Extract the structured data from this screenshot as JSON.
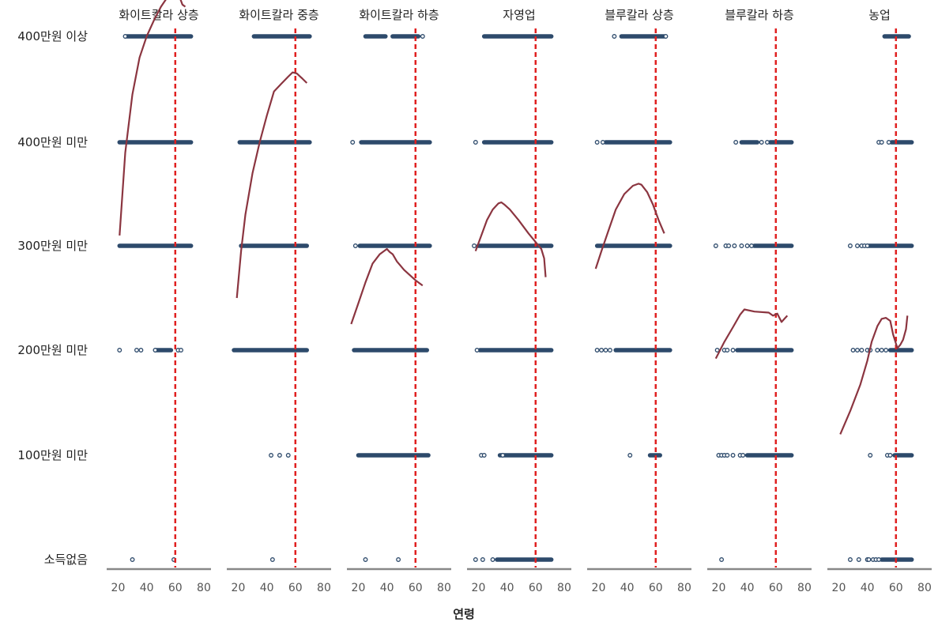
{
  "chart_data": {
    "type": "scatter",
    "xlabel": "연령",
    "xlim": [
      12,
      85
    ],
    "x_ticks": [
      20,
      40,
      60,
      80
    ],
    "y_levels": [
      "소득없음",
      "100만원 미만",
      "200만원 미만",
      "300만원 미만",
      "400만원 미만",
      "400만원 이상"
    ],
    "reference_line": 60,
    "colors": {
      "points": "#2d4a6b",
      "curve": "#8b3540",
      "ref": "#e02020",
      "axis": "#888888"
    },
    "facets": [
      {
        "title": "화이트칼라 상층",
        "points": [
          {
            "level": 5,
            "segments": [
              [
                26,
                71
              ]
            ],
            "singles": [
              25
            ]
          },
          {
            "level": 4,
            "segments": [
              [
                21,
                71
              ]
            ],
            "singles": []
          },
          {
            "level": 3,
            "segments": [
              [
                21,
                71
              ]
            ],
            "singles": []
          },
          {
            "level": 2,
            "segments": [
              [
                46,
                57
              ]
            ],
            "singles": [
              21,
              33,
              36,
              46,
              62,
              64
            ]
          },
          {
            "level": 1,
            "segments": [],
            "singles": []
          },
          {
            "level": 0,
            "segments": [],
            "singles": [
              30,
              59
            ]
          }
        ],
        "curve": [
          [
            21,
            3.1
          ],
          [
            25,
            3.9
          ],
          [
            30,
            4.45
          ],
          [
            35,
            4.8
          ],
          [
            40,
            5.0
          ],
          [
            45,
            5.15
          ],
          [
            50,
            5.28
          ],
          [
            55,
            5.38
          ],
          [
            60,
            5.42
          ],
          [
            62,
            5.41
          ],
          [
            65,
            5.3
          ],
          [
            67,
            5.28
          ]
        ]
      },
      {
        "title": "화이트칼라 중층",
        "points": [
          {
            "level": 5,
            "segments": [
              [
                31,
                70
              ]
            ],
            "singles": []
          },
          {
            "level": 4,
            "segments": [
              [
                21,
                70
              ]
            ],
            "singles": []
          },
          {
            "level": 3,
            "segments": [
              [
                22,
                68
              ]
            ],
            "singles": []
          },
          {
            "level": 2,
            "segments": [
              [
                17,
                68
              ]
            ],
            "singles": []
          },
          {
            "level": 1,
            "segments": [],
            "singles": [
              43,
              49,
              55
            ]
          },
          {
            "level": 0,
            "segments": [],
            "singles": [
              44
            ]
          }
        ],
        "curve": [
          [
            19,
            2.5
          ],
          [
            22,
            2.95
          ],
          [
            25,
            3.3
          ],
          [
            30,
            3.7
          ],
          [
            35,
            4.0
          ],
          [
            40,
            4.25
          ],
          [
            45,
            4.48
          ],
          [
            50,
            4.55
          ],
          [
            55,
            4.62
          ],
          [
            58,
            4.66
          ],
          [
            61,
            4.65
          ],
          [
            65,
            4.6
          ],
          [
            68,
            4.56
          ]
        ]
      },
      {
        "title": "화이트칼라 하층",
        "points": [
          {
            "level": 5,
            "segments": [
              [
                25,
                39
              ],
              [
                44,
                62
              ]
            ],
            "singles": [
              65
            ]
          },
          {
            "level": 4,
            "segments": [
              [
                22,
                70
              ]
            ],
            "singles": [
              16
            ]
          },
          {
            "level": 3,
            "segments": [
              [
                21,
                70
              ]
            ],
            "singles": [
              18
            ]
          },
          {
            "level": 2,
            "segments": [
              [
                17,
                68
              ]
            ],
            "singles": []
          },
          {
            "level": 1,
            "segments": [
              [
                20,
                69
              ]
            ],
            "singles": []
          },
          {
            "level": 0,
            "segments": [],
            "singles": [
              25,
              48
            ]
          }
        ],
        "curve": [
          [
            15,
            2.25
          ],
          [
            20,
            2.45
          ],
          [
            25,
            2.65
          ],
          [
            30,
            2.83
          ],
          [
            35,
            2.92
          ],
          [
            38,
            2.95
          ],
          [
            40,
            2.97
          ],
          [
            42,
            2.94
          ],
          [
            44,
            2.92
          ],
          [
            47,
            2.85
          ],
          [
            52,
            2.77
          ],
          [
            60,
            2.67
          ],
          [
            65,
            2.62
          ]
        ]
      },
      {
        "title": "자영업",
        "points": [
          {
            "level": 5,
            "segments": [
              [
                24,
                71
              ]
            ],
            "singles": []
          },
          {
            "level": 4,
            "segments": [
              [
                24,
                71
              ]
            ],
            "singles": [
              18
            ]
          },
          {
            "level": 3,
            "segments": [
              [
                20,
                71
              ]
            ],
            "singles": [
              17
            ]
          },
          {
            "level": 2,
            "segments": [
              [
                21,
                71
              ]
            ],
            "singles": [
              19
            ]
          },
          {
            "level": 1,
            "segments": [
              [
                35,
                71
              ]
            ],
            "singles": [
              22,
              24,
              37
            ]
          },
          {
            "level": 0,
            "segments": [
              [
                33,
                71
              ]
            ],
            "singles": [
              18,
              23,
              30
            ]
          }
        ],
        "curve": [
          [
            18,
            2.95
          ],
          [
            22,
            3.1
          ],
          [
            26,
            3.25
          ],
          [
            30,
            3.35
          ],
          [
            34,
            3.41
          ],
          [
            36,
            3.42
          ],
          [
            38,
            3.4
          ],
          [
            42,
            3.35
          ],
          [
            48,
            3.25
          ],
          [
            55,
            3.12
          ],
          [
            61,
            3.02
          ],
          [
            64,
            2.97
          ],
          [
            66,
            2.88
          ],
          [
            67,
            2.7
          ]
        ]
      },
      {
        "title": "블루칼라 상층",
        "points": [
          {
            "level": 5,
            "segments": [
              [
                36,
                66
              ]
            ],
            "singles": [
              31,
              67
            ]
          },
          {
            "level": 4,
            "segments": [
              [
                25,
                70
              ]
            ],
            "singles": [
              19,
              23
            ]
          },
          {
            "level": 3,
            "segments": [
              [
                19,
                70
              ]
            ],
            "singles": []
          },
          {
            "level": 2,
            "segments": [
              [
                32,
                70
              ]
            ],
            "singles": [
              19,
              22,
              25,
              28
            ]
          },
          {
            "level": 1,
            "segments": [
              [
                56,
                63
              ]
            ],
            "singles": [
              42
            ]
          },
          {
            "level": 0,
            "segments": [],
            "singles": []
          }
        ],
        "curve": [
          [
            18,
            2.78
          ],
          [
            22,
            2.95
          ],
          [
            27,
            3.15
          ],
          [
            32,
            3.35
          ],
          [
            38,
            3.5
          ],
          [
            44,
            3.58
          ],
          [
            48,
            3.6
          ],
          [
            50,
            3.59
          ],
          [
            54,
            3.52
          ],
          [
            58,
            3.4
          ],
          [
            62,
            3.25
          ],
          [
            66,
            3.12
          ]
        ]
      },
      {
        "title": "블루칼라 하층",
        "points": [
          {
            "level": 5,
            "segments": [],
            "singles": []
          },
          {
            "level": 4,
            "segments": [
              [
                36,
                47
              ],
              [
                56,
                71
              ]
            ],
            "singles": [
              32,
              50,
              54
            ]
          },
          {
            "level": 3,
            "segments": [
              [
                45,
                71
              ]
            ],
            "singles": [
              18,
              25,
              27,
              31,
              36,
              40,
              43
            ]
          },
          {
            "level": 2,
            "segments": [
              [
                33,
                71
              ]
            ],
            "singles": [
              19,
              24,
              26,
              30
            ]
          },
          {
            "level": 1,
            "segments": [
              [
                40,
                71
              ]
            ],
            "singles": [
              20,
              22,
              24,
              26,
              30,
              35,
              37
            ]
          },
          {
            "level": 0,
            "segments": [],
            "singles": [
              22
            ]
          }
        ],
        "curve": [
          [
            18,
            1.92
          ],
          [
            24,
            2.08
          ],
          [
            30,
            2.22
          ],
          [
            35,
            2.34
          ],
          [
            38,
            2.39
          ],
          [
            45,
            2.37
          ],
          [
            55,
            2.36
          ],
          [
            58,
            2.33
          ],
          [
            61,
            2.35
          ],
          [
            64,
            2.27
          ],
          [
            66,
            2.3
          ],
          [
            68,
            2.33
          ]
        ]
      },
      {
        "title": "농업",
        "points": [
          {
            "level": 5,
            "segments": [
              [
                52,
                69
              ]
            ],
            "singles": []
          },
          {
            "level": 4,
            "segments": [
              [
                57,
                71
              ]
            ],
            "singles": [
              48,
              50,
              55
            ]
          },
          {
            "level": 3,
            "segments": [
              [
                41,
                71
              ]
            ],
            "singles": [
              28,
              33,
              36,
              38,
              40
            ]
          },
          {
            "level": 2,
            "segments": [
              [
                56,
                71
              ]
            ],
            "singles": [
              30,
              33,
              36,
              40,
              42,
              47,
              50,
              53
            ]
          },
          {
            "level": 1,
            "segments": [
              [
                59,
                71
              ]
            ],
            "singles": [
              42,
              54,
              56
            ]
          },
          {
            "level": 0,
            "segments": [
              [
                50,
                71
              ]
            ],
            "singles": [
              28,
              34,
              40,
              41,
              44,
              46,
              48
            ]
          }
        ],
        "curve": [
          [
            21,
            1.2
          ],
          [
            28,
            1.42
          ],
          [
            35,
            1.67
          ],
          [
            40,
            1.9
          ],
          [
            43,
            2.08
          ],
          [
            47,
            2.23
          ],
          [
            50,
            2.3
          ],
          [
            53,
            2.31
          ],
          [
            56,
            2.28
          ],
          [
            58,
            2.15
          ],
          [
            61,
            2.02
          ],
          [
            63,
            2.05
          ],
          [
            65,
            2.1
          ],
          [
            67,
            2.2
          ],
          [
            68,
            2.33
          ]
        ]
      }
    ]
  }
}
